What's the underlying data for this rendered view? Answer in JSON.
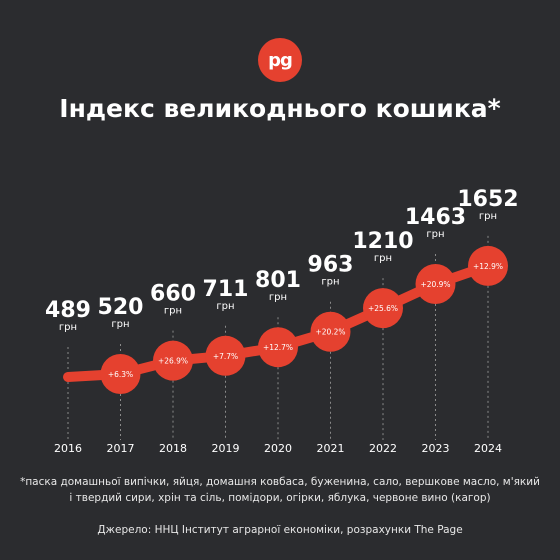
{
  "logo_text": "pg",
  "title": "Індекс великоднього кошика*",
  "chart_data": {
    "type": "line",
    "x": [
      "2016",
      "2017",
      "2018",
      "2019",
      "2020",
      "2021",
      "2022",
      "2023",
      "2024"
    ],
    "values": [
      489,
      520,
      660,
      711,
      801,
      963,
      1210,
      1463,
      1652
    ],
    "value_unit": "грн",
    "changes": [
      "",
      "+6.3%",
      "+26.9%",
      "+7.7%",
      "+12.7%",
      "+20.2%",
      "+25.6%",
      "+20.9%",
      "+12.9%"
    ],
    "xlabel": "",
    "ylabel": "",
    "grid": "dotted vertical lines at each year",
    "line_color": "#e5412f"
  },
  "footnote": "*паска домашньої випічки, яйця, домашня ковбаса, буженина, сало, вершкове масло, м'який і твердий сири, хрін та сіль, помідори, огірки, яблука, червоне вино (кагор)",
  "source": "Джерело: ННЦ Інститут аграрної економіки, розрахунки The Page"
}
